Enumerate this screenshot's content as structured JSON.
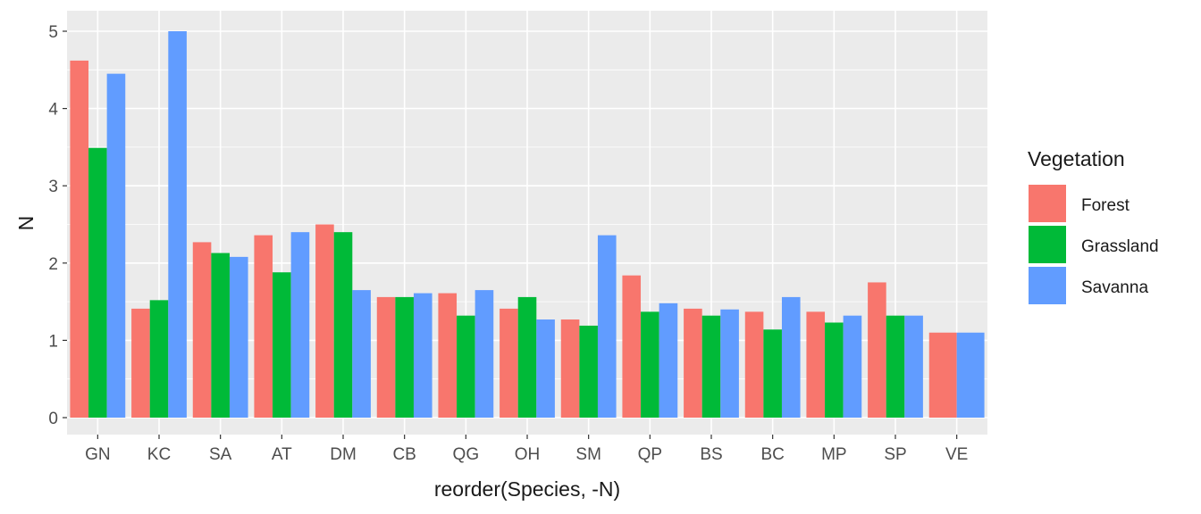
{
  "chart_data": {
    "type": "bar",
    "xlabel": "reorder(Species, -N)",
    "ylabel": "N",
    "ylim": [
      0,
      5
    ],
    "yticks": [
      "0",
      "1",
      "2",
      "3",
      "4",
      "5"
    ],
    "grid": true,
    "legend_position": "right",
    "legend_title": "Vegetation",
    "categories": [
      "GN",
      "KC",
      "SA",
      "AT",
      "DM",
      "CB",
      "QG",
      "OH",
      "SM",
      "QP",
      "BS",
      "BC",
      "MP",
      "SP",
      "VE"
    ],
    "series": [
      {
        "name": "Forest",
        "color": "#F8766D",
        "values": [
          4.62,
          1.41,
          2.27,
          2.36,
          2.5,
          1.56,
          1.61,
          1.41,
          1.27,
          1.84,
          1.41,
          1.37,
          1.37,
          1.75,
          1.1
        ]
      },
      {
        "name": "Grassland",
        "color": "#00BA38",
        "values": [
          3.49,
          1.52,
          2.13,
          1.88,
          2.4,
          1.56,
          1.32,
          1.56,
          1.19,
          1.37,
          1.32,
          1.14,
          1.23,
          1.32,
          null
        ]
      },
      {
        "name": "Savanna",
        "color": "#619CFF",
        "values": [
          4.45,
          5.0,
          2.08,
          2.4,
          1.65,
          1.61,
          1.65,
          1.27,
          2.36,
          1.48,
          1.4,
          1.56,
          1.32,
          1.32,
          1.1
        ]
      }
    ]
  }
}
